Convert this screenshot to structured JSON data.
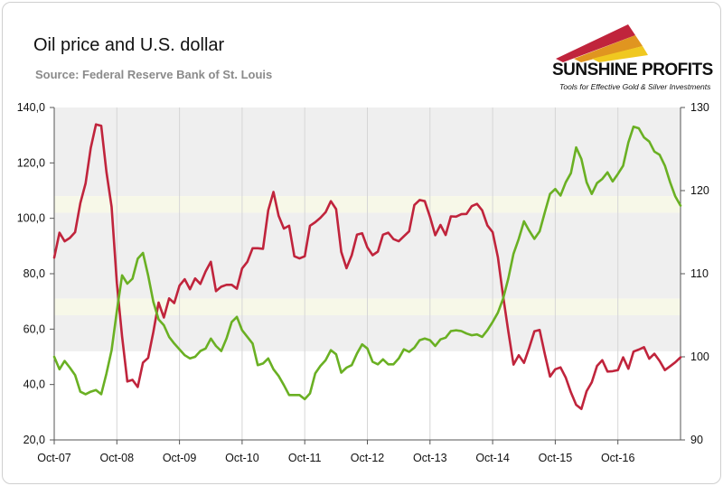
{
  "title": "Oil price and U.S. dollar",
  "source": "Source: Federal Reserve Bank of St. Louis",
  "brand": {
    "name": "SUNSHINE PROFITS",
    "tagline": "Tools for Effective Gold & Silver Investments"
  },
  "colors": {
    "oil": "#c0243c",
    "dollar": "#6ab023",
    "band_gray": "#efefef",
    "band_cream": "#f7f8e8"
  },
  "chart_data": {
    "type": "line",
    "title": "Oil price and U.S. dollar",
    "xlabel": "",
    "ylabel": "",
    "x_ticks": [
      "Oct-07",
      "Oct-08",
      "Oct-09",
      "Oct-10",
      "Oct-11",
      "Oct-12",
      "Oct-13",
      "Oct-14",
      "Oct-15",
      "Oct-16"
    ],
    "y_left": {
      "min": 20,
      "max": 140,
      "ticks": [
        "20,0",
        "40,0",
        "60,0",
        "80,0",
        "100,0",
        "120,0",
        "140,0"
      ]
    },
    "y_right": {
      "min": 90,
      "max": 130,
      "ticks": [
        "90",
        "100",
        "110",
        "120",
        "130"
      ]
    },
    "grid": true,
    "series": [
      {
        "axis": "left",
        "color": "#c0243c",
        "values": [
          85.8,
          94.8,
          91.7,
          92.9,
          95.0,
          105.5,
          112.6,
          125.4,
          133.9,
          133.4,
          116.7,
          104.1,
          76.6,
          57.3,
          41.1,
          41.7,
          39.1,
          47.9,
          49.6,
          59.0,
          69.6,
          64.2,
          71.1,
          69.4,
          75.7,
          78.0,
          74.4,
          78.3,
          76.3,
          80.8,
          84.3,
          73.7,
          75.3,
          76.0,
          76.0,
          74.6,
          81.9,
          84.3,
          89.2,
          89.2,
          89.0,
          102.9,
          109.5,
          100.9,
          96.3,
          97.3,
          86.3,
          85.5,
          86.3,
          97.3,
          98.6,
          100.2,
          102.2,
          106.2,
          103.3,
          87.9,
          82.0,
          86.7,
          94.1,
          94.6,
          89.5,
          86.7,
          88.0,
          94.1,
          94.8,
          92.5,
          91.7,
          93.5,
          95.3,
          104.8,
          106.6,
          106.2,
          100.5,
          93.9,
          97.6,
          94.0,
          100.7,
          100.6,
          101.5,
          101.6,
          104.4,
          105.2,
          102.9,
          97.4,
          95.0,
          86.0,
          71.9,
          59.3,
          47.2,
          50.6,
          47.8,
          53.2,
          59.2,
          59.7,
          50.9,
          42.9,
          45.5,
          46.2,
          42.5,
          37.2,
          32.7,
          31.2,
          37.6,
          40.8,
          46.7,
          48.8,
          44.7,
          44.8,
          45.2,
          49.8,
          45.7,
          51.9,
          52.6,
          53.5,
          49.3,
          51.1,
          48.5,
          45.2,
          46.6,
          48.0,
          49.8
        ]
      },
      {
        "axis": "right",
        "color": "#6ab023",
        "values": [
          100.0,
          98.5,
          99.5,
          98.7,
          97.8,
          95.8,
          95.5,
          95.8,
          96.0,
          95.5,
          98.0,
          100.8,
          105.5,
          109.8,
          108.8,
          109.4,
          111.8,
          112.5,
          109.8,
          106.6,
          104.5,
          103.8,
          102.4,
          101.6,
          100.9,
          100.2,
          99.8,
          100.0,
          100.7,
          101.0,
          102.2,
          101.3,
          100.7,
          102.2,
          104.2,
          104.8,
          103.2,
          102.4,
          101.6,
          99.0,
          99.2,
          99.8,
          98.5,
          97.7,
          96.6,
          95.4,
          95.4,
          95.4,
          94.9,
          95.6,
          98.0,
          98.9,
          99.6,
          100.8,
          100.3,
          98.1,
          98.7,
          99.0,
          100.4,
          101.5,
          101.0,
          99.4,
          99.1,
          99.7,
          99.1,
          99.1,
          99.8,
          100.9,
          100.6,
          101.1,
          102.0,
          102.2,
          102.0,
          101.3,
          102.1,
          102.3,
          103.1,
          103.2,
          103.1,
          102.8,
          102.6,
          102.7,
          102.4,
          103.2,
          104.2,
          105.3,
          107.0,
          109.4,
          112.4,
          114.2,
          116.3,
          115.2,
          114.2,
          115.1,
          117.4,
          119.6,
          120.2,
          119.4,
          121.0,
          122.1,
          125.2,
          123.8,
          121.0,
          119.6,
          120.9,
          121.4,
          122.2,
          121.1,
          122.0,
          123.0,
          125.8,
          127.7,
          127.5,
          126.4,
          125.9,
          124.7,
          124.3,
          123.0,
          121.0,
          119.3,
          118.2
        ]
      }
    ]
  }
}
